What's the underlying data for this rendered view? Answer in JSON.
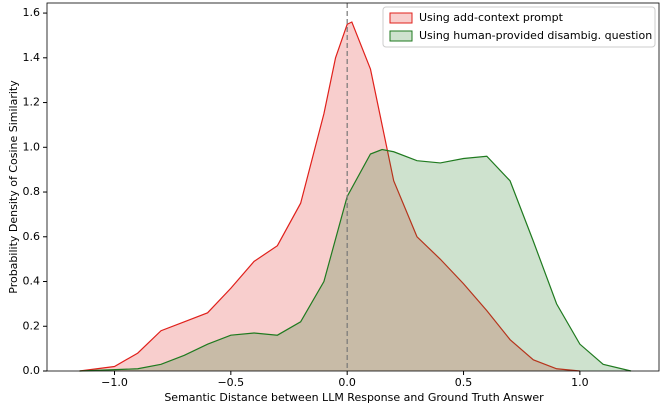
{
  "chart_data": {
    "type": "kde",
    "xlabel": "Semantic Distance between LLM Response and Ground Truth Answer",
    "ylabel": "Probability Density of Cosine Similarity",
    "xlim": [
      -1.29,
      1.34
    ],
    "ylim": [
      0,
      1.645
    ],
    "xticks": [
      {
        "value": -1,
        "label": "−1.0"
      },
      {
        "value": -0.5,
        "label": "−0.5"
      },
      {
        "value": 0,
        "label": "0.0"
      },
      {
        "value": 0.5,
        "label": "0.5"
      },
      {
        "value": 1,
        "label": "1.0"
      }
    ],
    "yticks": [
      {
        "value": 0,
        "label": "0.0"
      },
      {
        "value": 0.2,
        "label": "0.2"
      },
      {
        "value": 0.4,
        "label": "0.4"
      },
      {
        "value": 0.6,
        "label": "0.6"
      },
      {
        "value": 0.8,
        "label": "0.8"
      },
      {
        "value": 1,
        "label": "1.0"
      },
      {
        "value": 1.2,
        "label": "1.2"
      },
      {
        "value": 1.4,
        "label": "1.4"
      },
      {
        "value": 1.6,
        "label": "1.6"
      }
    ],
    "vline": 0,
    "legend": "upper right",
    "series": [
      {
        "name": "Using add-context prompt",
        "color": "#e0201b",
        "x": [
          -1.15,
          -1.0,
          -0.9,
          -0.8,
          -0.7,
          -0.6,
          -0.5,
          -0.4,
          -0.3,
          -0.2,
          -0.1,
          -0.05,
          0.0,
          0.02,
          0.1,
          0.2,
          0.3,
          0.4,
          0.5,
          0.6,
          0.7,
          0.8,
          0.9,
          1.0
        ],
        "values": [
          0,
          0.02,
          0.08,
          0.18,
          0.22,
          0.26,
          0.37,
          0.49,
          0.56,
          0.75,
          1.15,
          1.4,
          1.55,
          1.56,
          1.35,
          0.85,
          0.6,
          0.5,
          0.39,
          0.27,
          0.14,
          0.05,
          0.01,
          0
        ]
      },
      {
        "name": "Using human-provided disambig. question",
        "color": "#1f7a1f",
        "x": [
          -1.15,
          -0.9,
          -0.8,
          -0.7,
          -0.6,
          -0.5,
          -0.4,
          -0.3,
          -0.2,
          -0.1,
          0.0,
          0.1,
          0.15,
          0.2,
          0.3,
          0.4,
          0.5,
          0.6,
          0.7,
          0.8,
          0.9,
          1.0,
          1.1,
          1.22
        ],
        "values": [
          0,
          0.01,
          0.03,
          0.07,
          0.12,
          0.16,
          0.17,
          0.16,
          0.22,
          0.4,
          0.78,
          0.97,
          0.99,
          0.98,
          0.94,
          0.93,
          0.95,
          0.96,
          0.85,
          0.58,
          0.3,
          0.12,
          0.03,
          0
        ]
      }
    ]
  }
}
